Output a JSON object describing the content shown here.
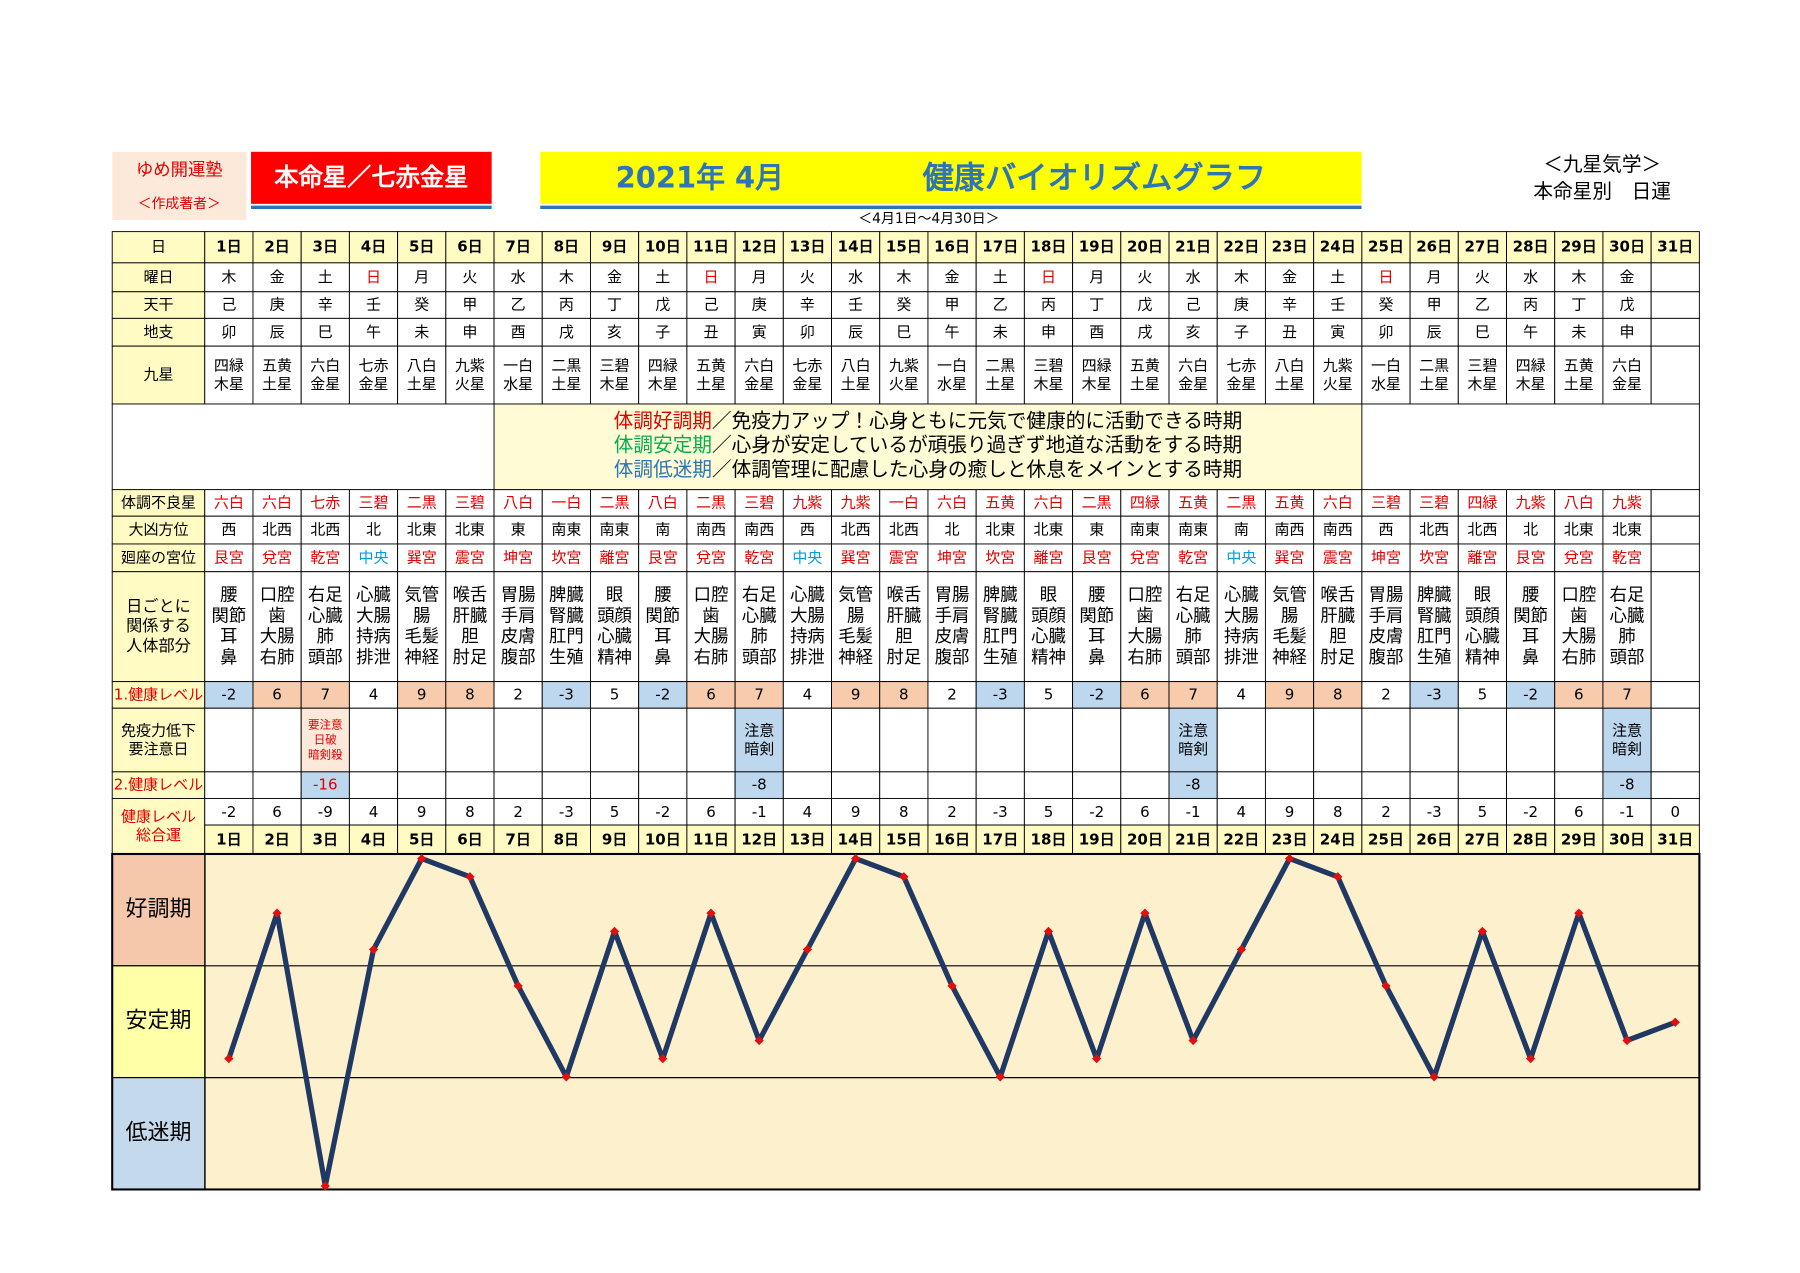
{
  "header": {
    "org": "ゆめ開運塾",
    "author": "＜作成著者＞",
    "star": "本命星／七赤金星",
    "date": "2021年 4月",
    "title": "健康バイオリズムグラフ",
    "right1": "＜九星気学＞",
    "right2": "本命星別　日運",
    "range": "＜4月1日～4月30日＞"
  },
  "table": {
    "rows": [
      {
        "label": [
          "日"
        ],
        "cells": [
          "1日",
          "2日",
          "3日",
          "4日",
          "5日",
          "6日",
          "7日",
          "8日",
          "9日",
          "10日",
          "11日",
          "12日",
          "13日",
          "14日",
          "15日",
          "16日",
          "17日",
          "18日",
          "19日",
          "20日",
          "21日",
          "22日",
          "23日",
          "24日",
          "25日",
          "26日",
          "27日",
          "28日",
          "29日",
          "30日",
          "31日"
        ]
      },
      {
        "label": [
          "曜日"
        ],
        "cells": [
          "木",
          "金",
          "土",
          "日",
          "月",
          "火",
          "水",
          "木",
          "金",
          "土",
          "日",
          "月",
          "火",
          "水",
          "木",
          "金",
          "土",
          "日",
          "月",
          "火",
          "水",
          "木",
          "金",
          "土",
          "日",
          "月",
          "火",
          "水",
          "木",
          "金",
          null
        ]
      },
      {
        "label": [
          "天干"
        ],
        "cells": [
          "己",
          "庚",
          "辛",
          "壬",
          "癸",
          "甲",
          "乙",
          "丙",
          "丁",
          "戊",
          "己",
          "庚",
          "辛",
          "壬",
          "癸",
          "甲",
          "乙",
          "丙",
          "丁",
          "戊",
          "己",
          "庚",
          "辛",
          "壬",
          "癸",
          "甲",
          "乙",
          "丙",
          "丁",
          "戊",
          null
        ]
      },
      {
        "label": [
          "地支"
        ],
        "cells": [
          "卯",
          "辰",
          "巳",
          "午",
          "未",
          "申",
          "酉",
          "戌",
          "亥",
          "子",
          "丑",
          "寅",
          "卯",
          "辰",
          "巳",
          "午",
          "未",
          "申",
          "酉",
          "戌",
          "亥",
          "子",
          "丑",
          "寅",
          "卯",
          "辰",
          "巳",
          "午",
          "未",
          "申",
          null
        ]
      },
      {
        "label": [
          "九星"
        ],
        "cells": [
          [
            "四緑",
            "木星"
          ],
          [
            "五黄",
            "土星"
          ],
          [
            "六白",
            "金星"
          ],
          [
            "七赤",
            "金星"
          ],
          [
            "八白",
            "土星"
          ],
          [
            "九紫",
            "火星"
          ],
          [
            "一白",
            "水星"
          ],
          [
            "二黒",
            "土星"
          ],
          [
            "三碧",
            "木星"
          ],
          [
            "四緑",
            "木星"
          ],
          [
            "五黄",
            "土星"
          ],
          [
            "六白",
            "金星"
          ],
          [
            "七赤",
            "金星"
          ],
          [
            "八白",
            "土星"
          ],
          [
            "九紫",
            "火星"
          ],
          [
            "一白",
            "水星"
          ],
          [
            "二黒",
            "土星"
          ],
          [
            "三碧",
            "木星"
          ],
          [
            "四緑",
            "木星"
          ],
          [
            "五黄",
            "土星"
          ],
          [
            "六白",
            "金星"
          ],
          [
            "七赤",
            "金星"
          ],
          [
            "八白",
            "土星"
          ],
          [
            "九紫",
            "火星"
          ],
          [
            "一白",
            "水星"
          ],
          [
            "二黒",
            "土星"
          ],
          [
            "三碧",
            "木星"
          ],
          [
            "四緑",
            "木星"
          ],
          [
            "五黄",
            "土星"
          ],
          [
            "六白",
            "金星"
          ],
          null
        ]
      },
      {
        "label": [
          "体調不良星"
        ],
        "cells": [
          "六白",
          "六白",
          "七赤",
          "三碧",
          "二黒",
          "三碧",
          "八白",
          "一白",
          "二黒",
          "八白",
          "二黒",
          "三碧",
          "九紫",
          "九紫",
          "一白",
          "六白",
          "五黄",
          "六白",
          "二黒",
          "四緑",
          "五黄",
          "二黒",
          "五黄",
          "六白",
          "三碧",
          "三碧",
          "四緑",
          "九紫",
          "八白",
          "九紫",
          null
        ]
      },
      {
        "label": [
          "大凶方位"
        ],
        "cells": [
          "西",
          "北西",
          "北西",
          "北",
          "北東",
          "北東",
          "東",
          "南東",
          "南東",
          "南",
          "南西",
          "南西",
          "西",
          "北西",
          "北西",
          "北",
          "北東",
          "北東",
          "東",
          "南東",
          "南東",
          "南",
          "南西",
          "南西",
          "西",
          "北西",
          "北西",
          "北",
          "北東",
          "北東",
          null
        ]
      },
      {
        "label": [
          "廻座の宮位"
        ],
        "cells": [
          "艮宮",
          "兌宮",
          "乾宮",
          "中央",
          "巽宮",
          "震宮",
          "坤宮",
          "坎宮",
          "離宮",
          "艮宮",
          "兌宮",
          "乾宮",
          "中央",
          "巽宮",
          "震宮",
          "坤宮",
          "坎宮",
          "離宮",
          "艮宮",
          "兌宮",
          "乾宮",
          "中央",
          "巽宮",
          "震宮",
          "坤宮",
          "坎宮",
          "離宮",
          "艮宮",
          "兌宮",
          "乾宮",
          null
        ]
      },
      {
        "label": [
          "日ごとに",
          "関係する",
          "人体部分"
        ],
        "cells": [
          [
            "腰",
            "関節",
            "耳",
            "鼻"
          ],
          [
            "口腔",
            "歯",
            "大腸",
            "右肺"
          ],
          [
            "右足",
            "心臓",
            "肺",
            "頭部"
          ],
          [
            "心臓",
            "大腸",
            "持病",
            "排泄"
          ],
          [
            "気管",
            "腸",
            "毛髪",
            "神経"
          ],
          [
            "喉舌",
            "肝臓",
            "胆",
            "肘足"
          ],
          [
            "胃腸",
            "手肩",
            "皮膚",
            "腹部"
          ],
          [
            "脾臓",
            "腎臓",
            "肛門",
            "生殖"
          ],
          [
            "眼",
            "頭顔",
            "心臓",
            "精神"
          ],
          [
            "腰",
            "関節",
            "耳",
            "鼻"
          ],
          [
            "口腔",
            "歯",
            "大腸",
            "右肺"
          ],
          [
            "右足",
            "心臓",
            "肺",
            "頭部"
          ],
          [
            "心臓",
            "大腸",
            "持病",
            "排泄"
          ],
          [
            "気管",
            "腸",
            "毛髪",
            "神経"
          ],
          [
            "喉舌",
            "肝臓",
            "胆",
            "肘足"
          ],
          [
            "胃腸",
            "手肩",
            "皮膚",
            "腹部"
          ],
          [
            "脾臓",
            "腎臓",
            "肛門",
            "生殖"
          ],
          [
            "眼",
            "頭顔",
            "心臓",
            "精神"
          ],
          [
            "腰",
            "関節",
            "耳",
            "鼻"
          ],
          [
            "口腔",
            "歯",
            "大腸",
            "右肺"
          ],
          [
            "右足",
            "心臓",
            "肺",
            "頭部"
          ],
          [
            "心臓",
            "大腸",
            "持病",
            "排泄"
          ],
          [
            "気管",
            "腸",
            "毛髪",
            "神経"
          ],
          [
            "喉舌",
            "肝臓",
            "胆",
            "肘足"
          ],
          [
            "胃腸",
            "手肩",
            "皮膚",
            "腹部"
          ],
          [
            "脾臓",
            "腎臓",
            "肛門",
            "生殖"
          ],
          [
            "眼",
            "頭顔",
            "心臓",
            "精神"
          ],
          [
            "腰",
            "関節",
            "耳",
            "鼻"
          ],
          [
            "口腔",
            "歯",
            "大腸",
            "右肺"
          ],
          [
            "右足",
            "心臓",
            "肺",
            "頭部"
          ],
          null
        ]
      },
      {
        "label": [
          "1.健康レベル"
        ],
        "cells": [
          -2,
          6,
          7,
          4,
          9,
          8,
          2,
          -3,
          5,
          -2,
          6,
          7,
          4,
          9,
          8,
          2,
          -3,
          5,
          -2,
          6,
          7,
          4,
          9,
          8,
          2,
          -3,
          5,
          -2,
          6,
          7,
          null
        ]
      },
      {
        "label": [
          "免疫力低下",
          "要注意日"
        ],
        "cells": [
          null,
          null,
          [
            "要注意",
            "日破",
            "暗剣殺"
          ],
          null,
          null,
          null,
          null,
          null,
          null,
          null,
          null,
          [
            "注意",
            "暗剣"
          ],
          null,
          null,
          null,
          null,
          null,
          null,
          null,
          null,
          [
            "注意",
            "暗剣"
          ],
          null,
          null,
          null,
          null,
          null,
          null,
          null,
          null,
          [
            "注意",
            "暗剣"
          ],
          null
        ]
      },
      {
        "label": [
          "2.健康レベル"
        ],
        "cells": [
          null,
          null,
          -16,
          null,
          null,
          null,
          null,
          null,
          null,
          null,
          null,
          -8,
          null,
          null,
          null,
          null,
          null,
          null,
          null,
          null,
          -8,
          null,
          null,
          null,
          null,
          null,
          null,
          null,
          null,
          -8,
          null
        ]
      }
    ]
  },
  "legend": [
    {
      "term": "体調好調期",
      "text": "／免疫力アップ！心身ともに元気で健康的に活動できる時期"
    },
    {
      "term": "体調安定期",
      "text": "／心身が安定しているが頑張り過ぎず地道な活動をする時期"
    },
    {
      "term": "体調低迷期",
      "text": "／体調管理に配慮した心身の癒しと休息をメインとする時期"
    }
  ],
  "chart_data": {
    "type": "line",
    "label": [
      "健康レベル",
      "総合運"
    ],
    "values": [
      -2,
      6,
      -9,
      4,
      9,
      8,
      2,
      -3,
      5,
      -2,
      6,
      -1,
      4,
      9,
      8,
      2,
      -3,
      5,
      -2,
      6,
      -1,
      4,
      9,
      8,
      2,
      -3,
      5,
      -2,
      6,
      -1,
      0
    ],
    "ylim": [
      -9,
      9
    ],
    "bands": [
      "好調期",
      "安定期",
      "低迷期"
    ],
    "color": "#1f3864",
    "marker_color": "#e01010"
  }
}
